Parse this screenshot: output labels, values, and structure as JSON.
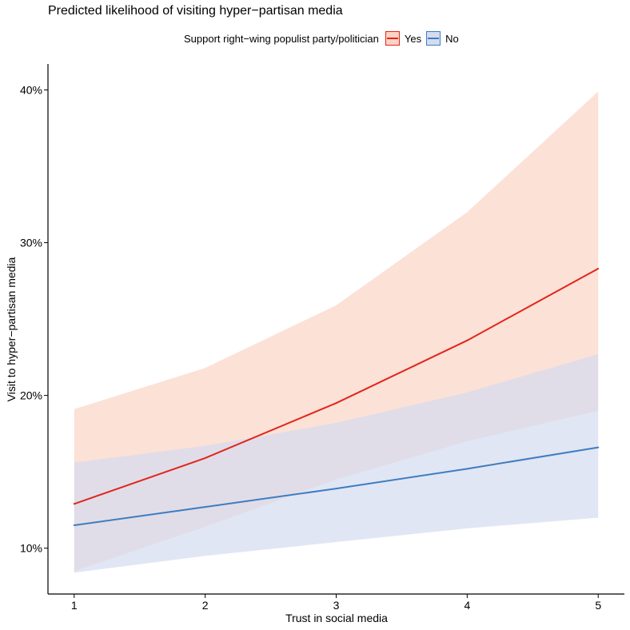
{
  "chart_data": {
    "type": "line",
    "title": "Predicted likelihood of visiting hyper−partisan media",
    "xlabel": "Trust in social media",
    "ylabel": "Visit to hyper−partisan media",
    "x": [
      1,
      2,
      3,
      4,
      5
    ],
    "x_ticks": [
      1,
      2,
      3,
      4,
      5
    ],
    "x_tick_labels": [
      "1",
      "2",
      "3",
      "4",
      "5"
    ],
    "xlim": [
      0.8,
      5.2
    ],
    "y_ticks": [
      0.1,
      0.2,
      0.3,
      0.4
    ],
    "y_tick_labels": [
      "10%",
      "20%",
      "30%",
      "40%"
    ],
    "ylim": [
      0.07,
      0.417
    ],
    "grid": false,
    "legend": {
      "title": "Support right−wing populist party/politician",
      "placement": "top"
    },
    "series": [
      {
        "name": "Yes",
        "values": [
          0.129,
          0.159,
          0.195,
          0.236,
          0.283
        ],
        "lower": [
          0.085,
          0.114,
          0.145,
          0.17,
          0.19
        ],
        "upper": [
          0.191,
          0.218,
          0.259,
          0.32,
          0.399
        ],
        "line_color": "#E1261C",
        "band_color": "#FBD4C4"
      },
      {
        "name": "No",
        "values": [
          0.115,
          0.127,
          0.139,
          0.152,
          0.166
        ],
        "lower": [
          0.084,
          0.095,
          0.104,
          0.113,
          0.12
        ],
        "upper": [
          0.156,
          0.167,
          0.182,
          0.202,
          0.227
        ],
        "line_color": "#3E7DC0",
        "band_color": "#D4DCEF"
      }
    ]
  }
}
